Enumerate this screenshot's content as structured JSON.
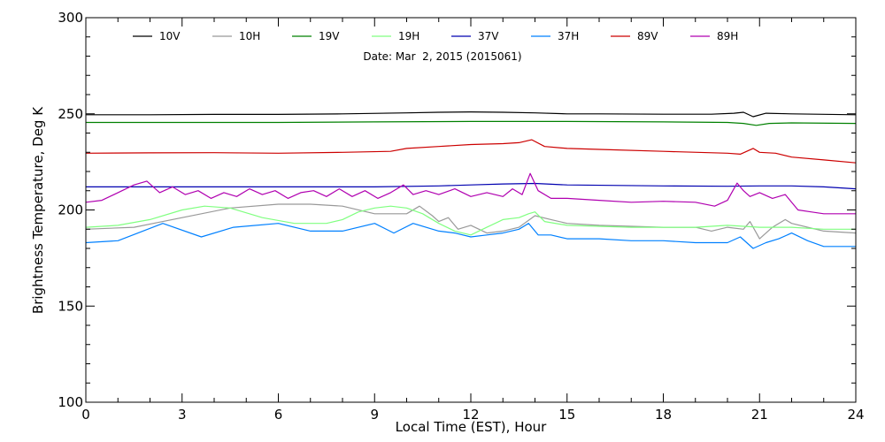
{
  "chart_data": {
    "type": "line",
    "title": "",
    "subtitle": "Date: Mar  2, 2015 (2015061)",
    "xlabel": "Local Time (EST), Hour",
    "ylabel": "Brightness Temperature, Deg K",
    "xlim": [
      0,
      24
    ],
    "ylim": [
      100,
      300
    ],
    "xticks": [
      0,
      3,
      6,
      9,
      12,
      15,
      18,
      21,
      24
    ],
    "yticks": [
      100,
      150,
      200,
      250,
      300
    ],
    "grid": false,
    "legend": "top",
    "series": [
      {
        "name": "10V",
        "color": "#000000",
        "x": [
          0,
          2,
          4,
          6,
          8,
          10,
          11,
          12,
          13,
          14,
          15,
          16,
          18,
          19.5,
          20.2,
          20.5,
          20.8,
          21.2,
          22,
          24
        ],
        "y": [
          249.5,
          249.5,
          249.7,
          249.7,
          250,
          250.5,
          250.8,
          251,
          250.8,
          250.5,
          250,
          250,
          249.8,
          249.8,
          250.3,
          250.8,
          248.5,
          250.3,
          250,
          249.5
        ]
      },
      {
        "name": "10H",
        "color": "#999999",
        "x": [
          0,
          1.5,
          3,
          4.5,
          6,
          7,
          8,
          9,
          10,
          10.4,
          10.8,
          11,
          11.3,
          11.6,
          12,
          12.5,
          13,
          13.5,
          14,
          14.5,
          15,
          16,
          18,
          19,
          19.5,
          20,
          20.5,
          20.7,
          21,
          21.4,
          21.8,
          22,
          23,
          24
        ],
        "y": [
          190,
          191,
          196,
          201,
          203,
          203,
          202,
          198,
          198,
          202,
          197,
          194,
          196,
          190,
          192,
          188,
          189,
          191,
          197,
          195,
          193,
          192,
          191,
          191,
          189,
          191,
          190,
          194,
          185,
          191,
          195,
          193,
          189,
          188
        ]
      },
      {
        "name": "19V",
        "color": "#008000",
        "x": [
          0,
          3,
          6,
          9,
          12,
          15,
          18,
          20,
          20.5,
          20.9,
          21.3,
          22,
          24
        ],
        "y": [
          245.5,
          245.5,
          245.5,
          245.8,
          246,
          246,
          245.8,
          245.5,
          245,
          244,
          245,
          245.3,
          245
        ]
      },
      {
        "name": "19H",
        "color": "#80ff80",
        "x": [
          0,
          1,
          2,
          3,
          3.7,
          4.5,
          5.5,
          6.5,
          7.5,
          8,
          8.5,
          9,
          9.5,
          10,
          10.5,
          11,
          11.5,
          12,
          12.5,
          13,
          13.5,
          13.8,
          14,
          14.3,
          15,
          17,
          19,
          20,
          21,
          22,
          23,
          24
        ],
        "y": [
          191,
          192,
          195,
          200,
          202,
          201,
          196,
          193,
          193,
          195,
          199,
          201,
          202,
          201,
          198,
          193,
          189,
          187,
          191,
          195,
          196,
          198,
          199,
          194,
          192,
          191,
          191,
          192,
          191,
          191,
          190,
          190
        ]
      },
      {
        "name": "37V",
        "color": "#0000b0",
        "x": [
          0,
          3,
          6,
          9,
          11,
          12,
          13,
          14,
          15,
          18,
          20,
          21,
          22,
          23,
          24
        ],
        "y": [
          212,
          212,
          212,
          212,
          212.5,
          213,
          213.5,
          213.8,
          213,
          212.5,
          212.3,
          212.5,
          212.5,
          212,
          211
        ]
      },
      {
        "name": "37H",
        "color": "#0080ff",
        "x": [
          0,
          1,
          2.4,
          3.6,
          4.6,
          6,
          7,
          8,
          9,
          9.6,
          10.2,
          11,
          11.5,
          12,
          12.5,
          13,
          13.5,
          13.8,
          14.1,
          14.5,
          15,
          16,
          17,
          18,
          19,
          20,
          20.4,
          20.8,
          21.2,
          21.6,
          22,
          22.5,
          23,
          24
        ],
        "y": [
          183,
          184,
          193,
          186,
          191,
          193,
          189,
          189,
          193,
          188,
          193,
          189,
          188,
          186,
          187,
          188,
          190,
          193,
          187,
          187,
          185,
          185,
          184,
          184,
          183,
          183,
          186,
          180,
          183,
          185,
          188,
          184,
          181,
          181
        ]
      },
      {
        "name": "89V",
        "color": "#cc0000",
        "x": [
          0,
          2,
          4,
          6,
          8,
          9.5,
          10,
          11,
          12,
          13,
          13.5,
          13.9,
          14.3,
          15,
          16,
          18,
          20,
          20.4,
          20.8,
          21,
          21.5,
          22,
          23,
          24
        ],
        "y": [
          229.5,
          229.7,
          229.8,
          229.5,
          230,
          230.5,
          232,
          233,
          234,
          234.5,
          235,
          236.5,
          233,
          232,
          231.5,
          230.5,
          229.5,
          229,
          232,
          230,
          229.5,
          227.5,
          226,
          224.5
        ]
      },
      {
        "name": "89H",
        "color": "#b000b0",
        "x": [
          0,
          0.5,
          1,
          1.5,
          1.9,
          2.3,
          2.7,
          3.1,
          3.5,
          3.9,
          4.3,
          4.7,
          5.1,
          5.5,
          5.9,
          6.3,
          6.7,
          7.1,
          7.5,
          7.9,
          8.3,
          8.7,
          9.1,
          9.5,
          9.9,
          10.2,
          10.6,
          11,
          11.5,
          12,
          12.5,
          13,
          13.3,
          13.6,
          13.85,
          14.1,
          14.5,
          15,
          16,
          17,
          18,
          19,
          19.6,
          20,
          20.3,
          20.5,
          20.7,
          21,
          21.4,
          21.8,
          22.2,
          22.6,
          23,
          24
        ],
        "y": [
          204,
          205,
          209,
          213,
          215,
          209,
          212,
          208,
          210,
          206,
          209,
          207,
          211,
          208,
          210,
          206,
          209,
          210,
          207,
          211,
          207,
          210,
          206,
          209,
          213,
          208,
          210,
          208,
          211,
          207,
          209,
          207,
          211,
          208,
          219,
          210,
          206,
          206,
          205,
          204,
          204.5,
          204,
          202,
          205,
          214,
          210,
          207,
          209,
          206,
          208,
          200,
          199,
          198,
          198
        ]
      }
    ]
  }
}
